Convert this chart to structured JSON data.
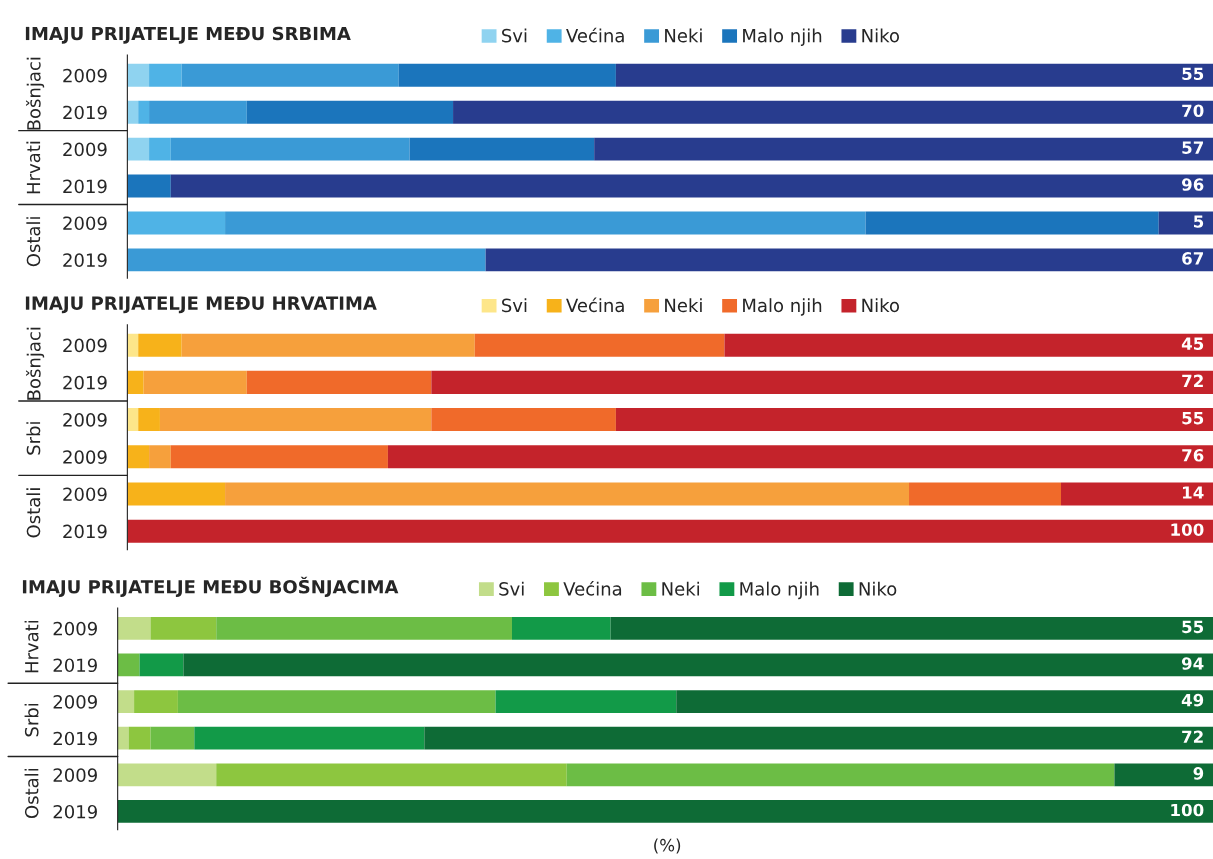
{
  "chart_data": [
    {
      "type": "bar",
      "orientation": "horizontal",
      "stacked": true,
      "legend": "top right",
      "grid": false,
      "xlim": [
        0,
        100
      ],
      "tick_labels": "y",
      "title": "IMAJU PRIJATELJE MEĐU SRBIMA",
      "categories": [
        "2009",
        "2019",
        "2009",
        "2019",
        "2009",
        "2019"
      ],
      "annotations": [
        "Bošnjaci",
        "Hrvati",
        "Ostali"
      ],
      "series": [
        {
          "name": "Svi",
          "color": "#8fd3f0",
          "values": [
            2,
            1,
            2,
            0,
            0,
            0
          ]
        },
        {
          "name": "Većina",
          "color": "#4fb3e6",
          "values": [
            3,
            1,
            2,
            0,
            9,
            0
          ]
        },
        {
          "name": "Neki",
          "color": "#3a9ad6",
          "values": [
            20,
            9,
            22,
            0,
            59,
            33
          ]
        },
        {
          "name": "Malo njih",
          "color": "#1b75bc",
          "values": [
            20,
            19,
            17,
            4,
            27,
            0
          ]
        },
        {
          "name": "Niko",
          "color": "#283c8e",
          "values": [
            55,
            70,
            57,
            96,
            5,
            67
          ],
          "value_labels": [
            "55",
            "70",
            "57",
            "96",
            "5",
            "67"
          ]
        }
      ]
    },
    {
      "type": "bar",
      "orientation": "horizontal",
      "stacked": true,
      "legend": "top right",
      "grid": false,
      "xlim": [
        0,
        100
      ],
      "tick_labels": "y",
      "title": "IMAJU PRIJATELJE MEĐU HRVATIMA",
      "categories": [
        "2009",
        "2019",
        "2009",
        "2009",
        "2009",
        "2019"
      ],
      "annotations": [
        "Bošnjaci",
        "Srbi",
        "Ostali"
      ],
      "series": [
        {
          "name": "Svi",
          "color": "#fde68a",
          "values": [
            1,
            0,
            1,
            0,
            0,
            0
          ]
        },
        {
          "name": "Većina",
          "color": "#f7b21a",
          "values": [
            4,
            1.5,
            2,
            2,
            9,
            0
          ]
        },
        {
          "name": "Neki",
          "color": "#f6a03c",
          "values": [
            27,
            9.5,
            25,
            2,
            63,
            0
          ]
        },
        {
          "name": "Malo njih",
          "color": "#f06a2a",
          "values": [
            23,
            17,
            17,
            20,
            14,
            0
          ]
        },
        {
          "name": "Niko",
          "color": "#c4232b",
          "values": [
            45,
            72,
            55,
            76,
            14,
            100
          ],
          "value_labels": [
            "45",
            "72",
            "55",
            "76",
            "14",
            "100"
          ]
        }
      ]
    },
    {
      "type": "bar",
      "orientation": "horizontal",
      "stacked": true,
      "legend": "top right",
      "grid": false,
      "xlim": [
        0,
        100
      ],
      "tick_labels": "y",
      "title": "IMAJU PRIJATELJE MEĐU BOŠNJACIMA",
      "categories": [
        "2009",
        "2019",
        "2009",
        "2019",
        "2009",
        "2019"
      ],
      "annotations": [
        "Hrvati",
        "Srbi",
        "Ostali",
        "(%)"
      ],
      "series": [
        {
          "name": "Svi",
          "color": "#c2dd8a",
          "values": [
            3,
            0,
            1.5,
            1,
            9,
            0
          ]
        },
        {
          "name": "Većina",
          "color": "#8dc63f",
          "values": [
            6,
            0,
            4,
            2,
            32,
            0
          ]
        },
        {
          "name": "Neki",
          "color": "#6cbd45",
          "values": [
            27,
            2,
            29,
            4,
            50,
            0
          ]
        },
        {
          "name": "Malo njih",
          "color": "#129a48",
          "values": [
            9,
            4,
            16.5,
            21,
            0,
            0
          ]
        },
        {
          "name": "Niko",
          "color": "#0e6b36",
          "values": [
            55,
            94,
            49,
            72,
            9,
            100
          ],
          "value_labels": [
            "55",
            "94",
            "49",
            "72",
            "9",
            "100"
          ]
        }
      ]
    }
  ]
}
